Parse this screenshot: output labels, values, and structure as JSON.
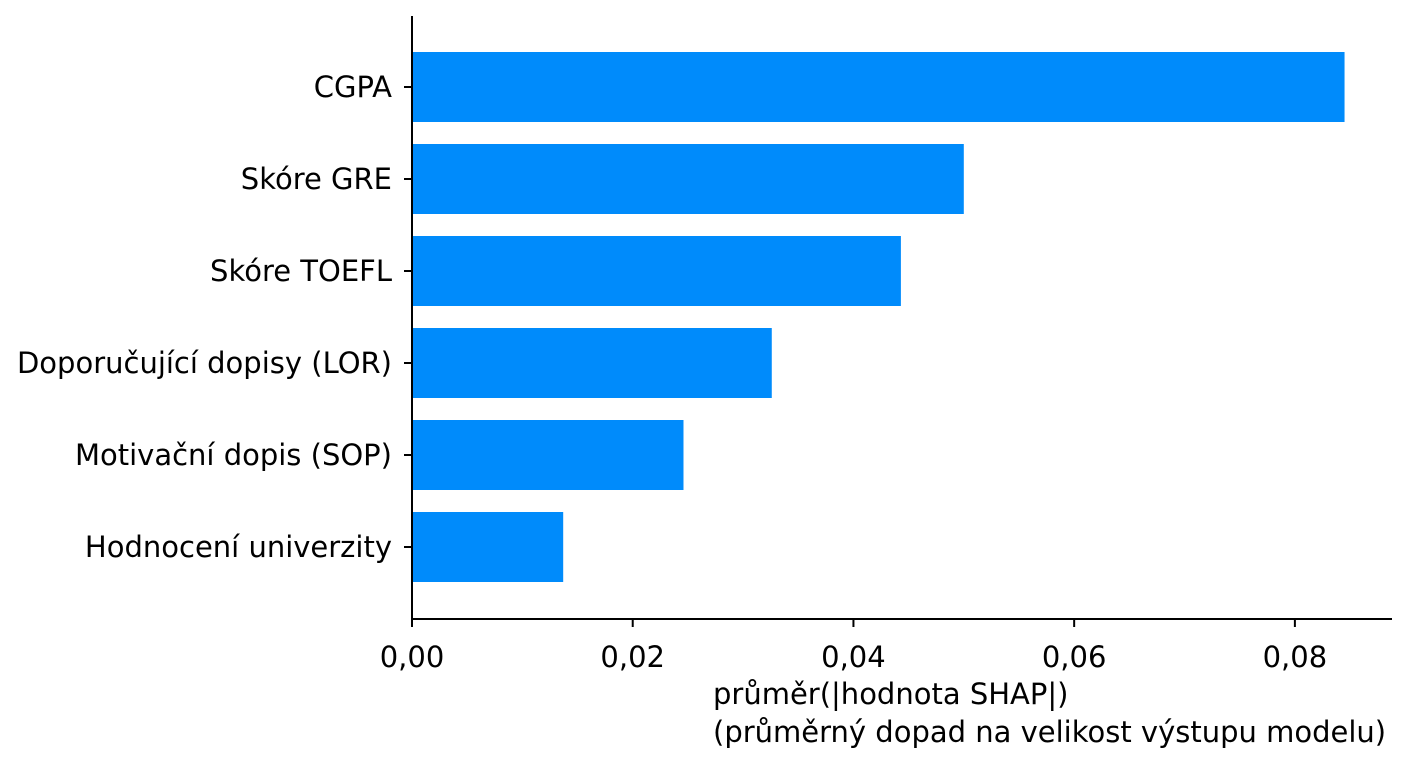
{
  "chart_data": {
    "type": "bar",
    "orientation": "horizontal",
    "categories": [
      "CGPA",
      "Skóre GRE",
      "Skóre TOEFL",
      "Doporučující dopisy (LOR)",
      "Motivační dopis (SOP)",
      "Hodnocení univerzity"
    ],
    "values": [
      0.0845,
      0.05,
      0.0443,
      0.0326,
      0.0246,
      0.0137
    ],
    "xlim": [
      0,
      0.0888
    ],
    "xticks": [
      0,
      0.02,
      0.04,
      0.06,
      0.08
    ],
    "xtick_labels": [
      "0,00",
      "0,02",
      "0,04",
      "0,06",
      "0,08"
    ],
    "xlabel": [
      "průměr(|hodnota SHAP|)",
      "(průměrný dopad na velikost výstupu modelu)"
    ],
    "ylabel": "",
    "title": "",
    "bar_color": "#008bfb",
    "grid": false,
    "legend": "none"
  }
}
